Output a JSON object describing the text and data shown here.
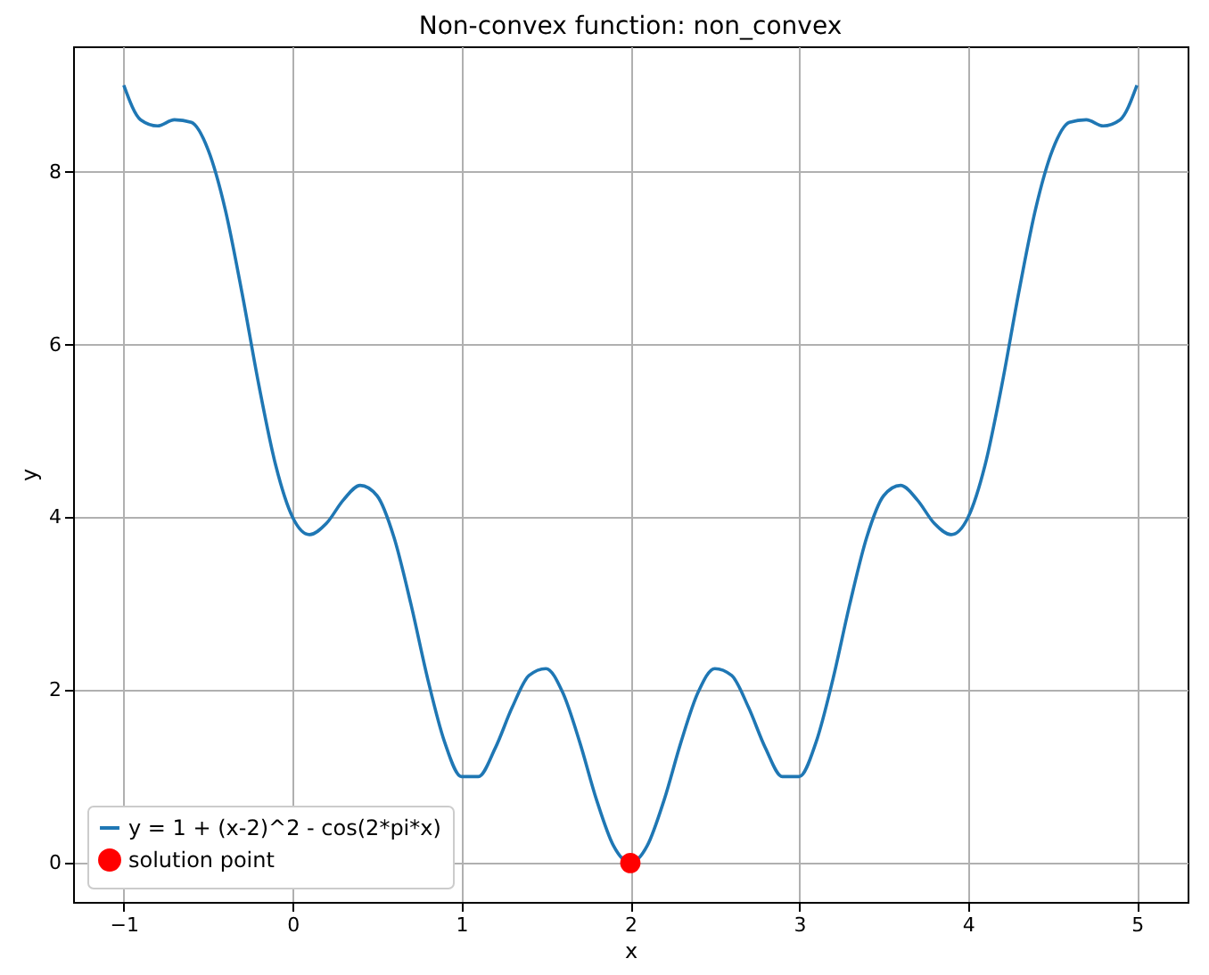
{
  "chart_data": {
    "type": "line",
    "title": "Non-convex function: non_convex",
    "xlabel": "x",
    "ylabel": "y",
    "xlim": [
      -1.3,
      5.3
    ],
    "xticks": [
      -1,
      0,
      1,
      2,
      3,
      4,
      5
    ],
    "ylim": [
      -0.45,
      9.45
    ],
    "yticks": [
      0,
      2,
      4,
      6,
      8
    ],
    "grid": true,
    "legend": "bottom left",
    "series": [
      {
        "name": "y = 1 + (x-2)^2 - cos(2*pi*x)",
        "color": "#1f77b4",
        "marker": "none",
        "x": [
          -1,
          -0.9,
          -0.8,
          -0.7,
          -0.6,
          -0.5,
          -0.4,
          -0.3,
          -0.2,
          -0.1,
          0,
          0.1,
          0.2,
          0.3,
          0.4,
          0.5,
          0.6,
          0.7,
          0.8,
          0.9,
          1,
          1.1,
          1.2,
          1.3,
          1.4,
          1.5,
          1.6,
          1.7,
          1.8,
          1.9,
          2,
          2.1,
          2.2,
          2.3,
          2.4,
          2.5,
          2.6,
          2.7,
          2.8,
          2.9,
          3,
          3.1,
          3.2,
          3.3,
          3.4,
          3.5,
          3.6,
          3.7,
          3.8,
          3.9,
          4,
          4.1,
          4.2,
          4.3,
          4.4,
          4.5,
          4.6,
          4.7,
          4.8,
          4.9,
          5
        ],
        "values": [
          9,
          8.6,
          8.53,
          8.6,
          8.57,
          8.25,
          7.57,
          6.6,
          5.53,
          4.6,
          4,
          3.8,
          3.93,
          4.2,
          4.37,
          4.25,
          3.77,
          3,
          2.13,
          1.4,
          1,
          1,
          1.33,
          1.8,
          2.17,
          2.25,
          1.97,
          1.4,
          0.73,
          0.2,
          0,
          0.2,
          0.73,
          1.4,
          1.97,
          2.25,
          2.17,
          1.8,
          1.33,
          1,
          1,
          1.4,
          2.13,
          3,
          3.77,
          4.25,
          4.37,
          4.2,
          3.93,
          3.8,
          4,
          4.6,
          5.53,
          6.6,
          7.57,
          8.25,
          8.57,
          8.6,
          8.53,
          8.6,
          9
        ]
      },
      {
        "name": "solution point",
        "type": "scatter",
        "color": "#ff0000",
        "marker": "circle",
        "x": [
          2
        ],
        "values": [
          0
        ]
      }
    ]
  }
}
